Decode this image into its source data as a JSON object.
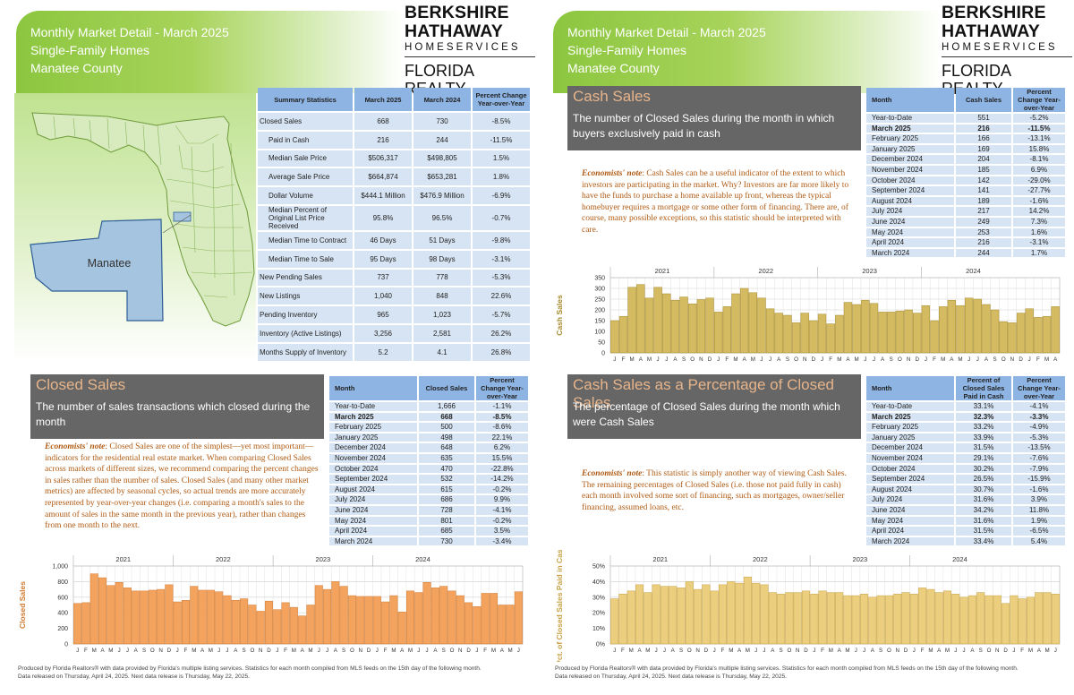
{
  "header": {
    "line1": "Monthly Market Detail - March 2025",
    "line2": "Single-Family Homes",
    "line3": "Manatee County"
  },
  "logo": {
    "line1": "BERKSHIRE",
    "line2": "HATHAWAY",
    "line3": "HOMESERVICES",
    "line4": "FLORIDA REALTY"
  },
  "map": {
    "county_label": "Manatee",
    "fill": "#d8ebbf",
    "highlight": "#a5c4e0"
  },
  "summary": {
    "headers": [
      "Summary Statistics",
      "March 2025",
      "March 2024",
      "Percent Change Year-over-Year"
    ],
    "rows": [
      {
        "label": "Closed Sales",
        "v1": "668",
        "v2": "730",
        "pct": "-8.5%",
        "sub": false
      },
      {
        "label": "Paid in Cash",
        "v1": "216",
        "v2": "244",
        "pct": "-11.5%",
        "sub": true
      },
      {
        "label": "Median Sale Price",
        "v1": "$506,317",
        "v2": "$498,805",
        "pct": "1.5%",
        "sub": true
      },
      {
        "label": "Average Sale Price",
        "v1": "$664,874",
        "v2": "$653,281",
        "pct": "1.8%",
        "sub": true
      },
      {
        "label": "Dollar Volume",
        "v1": "$444.1 Million",
        "v2": "$476.9 Million",
        "pct": "-6.9%",
        "sub": true
      },
      {
        "label": "Median Percent of Original List Price Received",
        "v1": "95.8%",
        "v2": "96.5%",
        "pct": "-0.7%",
        "sub": true
      },
      {
        "label": "Median Time to Contract",
        "v1": "46 Days",
        "v2": "51 Days",
        "pct": "-9.8%",
        "sub": true
      },
      {
        "label": "Median Time to Sale",
        "v1": "95 Days",
        "v2": "98 Days",
        "pct": "-3.1%",
        "sub": true
      },
      {
        "label": "New Pending Sales",
        "v1": "737",
        "v2": "778",
        "pct": "-5.3%",
        "sub": false
      },
      {
        "label": "New Listings",
        "v1": "1,040",
        "v2": "848",
        "pct": "22.6%",
        "sub": false
      },
      {
        "label": "Pending Inventory",
        "v1": "965",
        "v2": "1,023",
        "pct": "-5.7%",
        "sub": false
      },
      {
        "label": "Inventory (Active Listings)",
        "v1": "3,256",
        "v2": "2,581",
        "pct": "26.2%",
        "sub": false
      },
      {
        "label": "Months Supply of Inventory",
        "v1": "5.2",
        "v2": "4.1",
        "pct": "26.8%",
        "sub": false
      }
    ]
  },
  "sections": [
    {
      "id": "closed",
      "title": "Closed Sales",
      "description": "The number of sales transactions which closed during the month",
      "note_label": "Economists' note",
      "note": ": Closed Sales are one of the simplest—yet most important—indicators for the residential real estate market. When comparing Closed Sales across markets of different sizes, we recommend comparing the percent changes in sales rather than the number of sales. Closed Sales (and many other market metrics) are affected by seasonal cycles, so actual trends are more accurately represented by year-over-year changes (i.e. comparing a month's sales to the amount of sales in the same month in the previous year), rather than changes from one month to the next.",
      "headers": [
        "Month",
        "Closed Sales",
        "Percent Change Year-over-Year"
      ],
      "rows": [
        [
          "Year-to-Date",
          "1,666",
          "-1.1%"
        ],
        [
          "March 2025",
          "668",
          "-8.5%"
        ],
        [
          "February 2025",
          "500",
          "-8.6%"
        ],
        [
          "January 2025",
          "498",
          "22.1%"
        ],
        [
          "December 2024",
          "648",
          "6.2%"
        ],
        [
          "November 2024",
          "635",
          "15.5%"
        ],
        [
          "October 2024",
          "470",
          "-22.8%"
        ],
        [
          "September 2024",
          "532",
          "-14.2%"
        ],
        [
          "August 2024",
          "615",
          "-0.2%"
        ],
        [
          "July 2024",
          "686",
          "9.9%"
        ],
        [
          "June 2024",
          "728",
          "-4.1%"
        ],
        [
          "May 2024",
          "801",
          "-0.2%"
        ],
        [
          "April 2024",
          "685",
          "3.5%"
        ],
        [
          "March 2024",
          "730",
          "-3.4%"
        ]
      ]
    },
    {
      "id": "cash",
      "title": "Cash Sales",
      "description": "The number of Closed Sales during the month in which buyers exclusively paid in cash",
      "note_label": "Economists' note",
      "note": ": Cash Sales can be a useful indicator of the extent to which investors are participating in the market. Why? Investors are far more likely to have the funds to purchase a home available up front, whereas the typical homebuyer requires a mortgage or some other form of financing. There are, of course, many possible exceptions, so this statistic should be interpreted with care.",
      "headers": [
        "Month",
        "Cash Sales",
        "Percent Change Year-over-Year"
      ],
      "rows": [
        [
          "Year-to-Date",
          "551",
          "-5.2%"
        ],
        [
          "March 2025",
          "216",
          "-11.5%"
        ],
        [
          "February 2025",
          "166",
          "-13.1%"
        ],
        [
          "January 2025",
          "169",
          "15.8%"
        ],
        [
          "December 2024",
          "204",
          "-8.1%"
        ],
        [
          "November 2024",
          "185",
          "6.9%"
        ],
        [
          "October 2024",
          "142",
          "-29.0%"
        ],
        [
          "September 2024",
          "141",
          "-27.7%"
        ],
        [
          "August 2024",
          "189",
          "-1.6%"
        ],
        [
          "July 2024",
          "217",
          "14.2%"
        ],
        [
          "June 2024",
          "249",
          "7.3%"
        ],
        [
          "May 2024",
          "253",
          "1.6%"
        ],
        [
          "April 2024",
          "216",
          "-3.1%"
        ],
        [
          "March 2024",
          "244",
          "1.7%"
        ]
      ]
    },
    {
      "id": "pct",
      "title": "Cash Sales as a Percentage of Closed Sales",
      "description": "The percentage of Closed Sales during the month which were Cash Sales",
      "note_label": "Economists' note",
      "note": ": This statistic is simply another way of viewing Cash Sales. The remaining percentages of Closed Sales (i.e. those not paid fully in cash) each month involved some sort of financing, such as mortgages, owner/seller financing, assumed loans, etc.",
      "headers": [
        "Month",
        "Percent of Closed Sales Paid in Cash",
        "Percent Change Year-over-Year"
      ],
      "rows": [
        [
          "Year-to-Date",
          "33.1%",
          "-4.1%"
        ],
        [
          "March 2025",
          "32.3%",
          "-3.3%"
        ],
        [
          "February 2025",
          "33.2%",
          "-4.9%"
        ],
        [
          "January 2025",
          "33.9%",
          "-5.3%"
        ],
        [
          "December 2024",
          "31.5%",
          "-13.5%"
        ],
        [
          "November 2024",
          "29.1%",
          "-7.6%"
        ],
        [
          "October 2024",
          "30.2%",
          "-7.9%"
        ],
        [
          "September 2024",
          "26.5%",
          "-15.9%"
        ],
        [
          "August 2024",
          "30.7%",
          "-1.6%"
        ],
        [
          "July 2024",
          "31.6%",
          "3.9%"
        ],
        [
          "June 2024",
          "34.2%",
          "11.8%"
        ],
        [
          "May 2024",
          "31.6%",
          "1.9%"
        ],
        [
          "April 2024",
          "31.5%",
          "-6.5%"
        ],
        [
          "March 2024",
          "33.4%",
          "5.4%"
        ]
      ]
    }
  ],
  "footer": {
    "line1": "Produced by Florida Realtors® with data provided by Florida's multiple listing services. Statistics for each month compiled from MLS feeds on the 15th day of the following month.",
    "line2": "Data released on Thursday, April 24, 2025. Next data release is Thursday, May 22, 2025."
  },
  "chart_data": [
    {
      "type": "bar",
      "id": "closed",
      "ylabel": "Closed Sales",
      "ylim": [
        0,
        1000
      ],
      "yticks": [
        "0",
        "200",
        "400",
        "600",
        "800",
        "1,000"
      ],
      "years": [
        "2021",
        "2022",
        "2023",
        "2024"
      ],
      "months": [
        "J",
        "F",
        "M",
        "A",
        "M",
        "J",
        "J",
        "A",
        "S",
        "O",
        "N",
        "D"
      ],
      "color": "#f4a35e",
      "edge": "#d07a30",
      "values": [
        520,
        530,
        900,
        850,
        750,
        790,
        720,
        680,
        680,
        690,
        700,
        760,
        540,
        560,
        740,
        690,
        690,
        670,
        620,
        560,
        580,
        500,
        420,
        550,
        440,
        530,
        470,
        360,
        500,
        750,
        700,
        800,
        740,
        620,
        610,
        610,
        610,
        540,
        620,
        410,
        680,
        660,
        790,
        720,
        740,
        680,
        620,
        530,
        480,
        650,
        650,
        500,
        500,
        670
      ]
    },
    {
      "type": "bar",
      "id": "cash",
      "ylabel": "Cash Sales",
      "ylim": [
        0,
        350
      ],
      "yticks": [
        "0",
        "50",
        "100",
        "150",
        "200",
        "250",
        "300",
        "350"
      ],
      "years": [
        "2021",
        "2022",
        "2023",
        "2024"
      ],
      "months": [
        "J",
        "F",
        "M",
        "A",
        "M",
        "J",
        "J",
        "A",
        "S",
        "O",
        "N",
        "D"
      ],
      "color": "#d4ba60",
      "edge": "#a68a2c",
      "values": [
        150,
        170,
        305,
        318,
        255,
        305,
        275,
        245,
        260,
        228,
        248,
        255,
        190,
        215,
        275,
        300,
        280,
        255,
        205,
        185,
        175,
        140,
        185,
        150,
        180,
        135,
        175,
        235,
        225,
        245,
        230,
        190,
        190,
        195,
        200,
        185,
        220,
        150,
        215,
        245,
        220,
        255,
        250,
        225,
        200,
        145,
        140,
        185,
        205,
        165,
        170,
        215
      ]
    },
    {
      "type": "bar",
      "id": "pct",
      "ylabel": "Pct. of Closed Sales Paid in Cash",
      "ylim": [
        0,
        50
      ],
      "yticks": [
        "0%",
        "10%",
        "20%",
        "30%",
        "40%",
        "50%"
      ],
      "years": [
        "2021",
        "2022",
        "2023",
        "2024"
      ],
      "months": [
        "J",
        "F",
        "M",
        "A",
        "M",
        "J",
        "J",
        "A",
        "S",
        "O",
        "N",
        "D"
      ],
      "color": "#eccf7e",
      "edge": "#c7a245",
      "values": [
        29,
        32,
        34,
        38,
        33,
        38,
        37,
        37,
        36,
        40,
        35,
        38,
        34,
        38,
        40,
        39,
        43,
        39,
        38,
        33,
        32,
        33,
        33,
        34,
        32,
        34,
        33,
        33,
        31,
        31,
        32,
        30,
        31,
        31,
        32,
        33,
        32,
        36,
        35,
        33,
        34,
        32,
        30,
        31,
        33,
        31,
        31,
        26,
        31,
        29,
        30,
        33,
        33,
        32
      ]
    }
  ]
}
